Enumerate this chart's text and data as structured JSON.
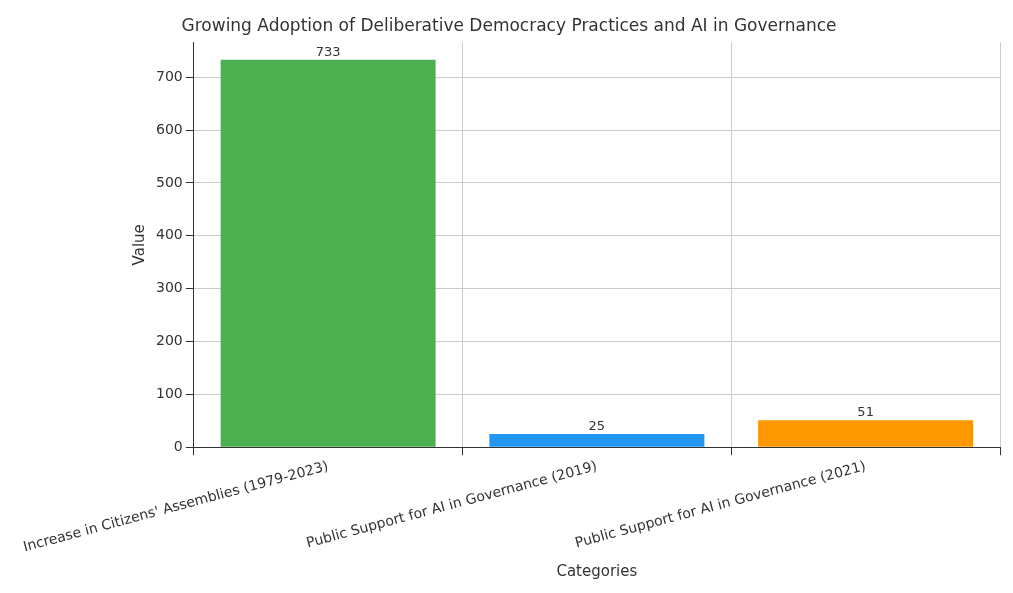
{
  "chart_data": {
    "type": "bar",
    "title": "Growing Adoption of Deliberative Democracy Practices and AI in Governance",
    "xlabel": "Categories",
    "ylabel": "Value",
    "categories": [
      "Increase in Citizens' Assemblies (1979-2023)",
      "Public Support for AI in Governance (2019)",
      "Public Support for AI in Governance (2021)"
    ],
    "values": [
      733,
      25,
      51
    ],
    "colors": [
      "#4caf50",
      "#2196f3",
      "#ff9800"
    ],
    "ylim": [
      0,
      766
    ],
    "yticks": [
      0,
      100,
      200,
      300,
      400,
      500,
      600,
      700
    ],
    "grid": true,
    "data_labels": true,
    "legend": false
  }
}
